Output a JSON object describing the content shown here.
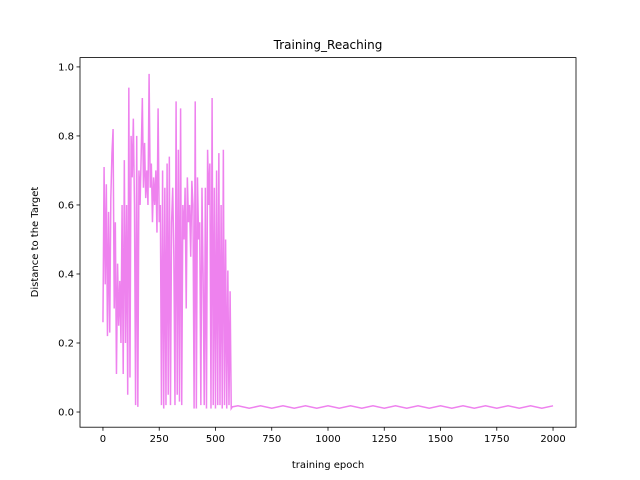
{
  "chart_data": {
    "type": "line",
    "title": "Training_Reaching",
    "xlabel": "training epoch",
    "ylabel": "Distance to the Target",
    "color": "#ee82ee",
    "x": [
      0,
      5,
      10,
      15,
      20,
      25,
      30,
      35,
      40,
      45,
      50,
      55,
      60,
      65,
      70,
      75,
      80,
      85,
      90,
      95,
      100,
      105,
      110,
      115,
      120,
      125,
      130,
      135,
      140,
      145,
      150,
      155,
      160,
      165,
      170,
      175,
      180,
      185,
      190,
      195,
      200,
      205,
      210,
      215,
      220,
      225,
      230,
      235,
      240,
      245,
      250,
      255,
      260,
      265,
      270,
      275,
      280,
      285,
      290,
      295,
      300,
      305,
      310,
      315,
      320,
      325,
      330,
      335,
      340,
      345,
      350,
      355,
      360,
      365,
      370,
      375,
      380,
      385,
      390,
      395,
      400,
      405,
      410,
      415,
      420,
      425,
      430,
      435,
      440,
      445,
      450,
      455,
      460,
      465,
      470,
      475,
      480,
      485,
      490,
      495,
      500,
      505,
      510,
      515,
      520,
      525,
      530,
      535,
      540,
      545,
      550,
      555,
      560,
      565,
      570,
      575,
      600,
      650,
      700,
      750,
      800,
      850,
      900,
      950,
      1000,
      1050,
      1100,
      1150,
      1200,
      1250,
      1300,
      1350,
      1400,
      1450,
      1500,
      1550,
      1600,
      1650,
      1700,
      1750,
      1800,
      1850,
      1900,
      1950,
      2000
    ],
    "values": [
      0.26,
      0.71,
      0.37,
      0.66,
      0.22,
      0.58,
      0.23,
      0.62,
      0.75,
      0.82,
      0.3,
      0.55,
      0.11,
      0.43,
      0.25,
      0.38,
      0.2,
      0.6,
      0.11,
      0.73,
      0.2,
      0.6,
      0.05,
      0.94,
      0.1,
      0.8,
      0.68,
      0.85,
      0.6,
      0.02,
      0.8,
      0.015,
      0.7,
      0.6,
      0.75,
      0.91,
      0.65,
      0.78,
      0.62,
      0.7,
      0.6,
      0.98,
      0.65,
      0.72,
      0.55,
      0.68,
      0.6,
      0.7,
      0.52,
      0.88,
      0.55,
      0.6,
      0.02,
      0.7,
      0.01,
      0.65,
      0.02,
      0.72,
      0.05,
      0.74,
      0.02,
      0.55,
      0.65,
      0.45,
      0.02,
      0.9,
      0.05,
      0.76,
      0.03,
      0.88,
      0.02,
      0.6,
      0.5,
      0.65,
      0.3,
      0.68,
      0.55,
      0.6,
      0.45,
      0.67,
      0.6,
      0.01,
      0.9,
      0.01,
      0.68,
      0.5,
      0.55,
      0.02,
      0.65,
      0.4,
      0.02,
      0.65,
      0.01,
      0.76,
      0.6,
      0.72,
      0.01,
      0.91,
      0.02,
      0.65,
      0.01,
      0.7,
      0.02,
      0.75,
      0.02,
      0.6,
      0.01,
      0.76,
      0.02,
      0.5,
      0.01,
      0.41,
      0.02,
      0.35,
      0.01,
      0.015,
      0.018,
      0.011,
      0.018,
      0.011,
      0.018,
      0.011,
      0.018,
      0.011,
      0.018,
      0.011,
      0.018,
      0.011,
      0.018,
      0.011,
      0.018,
      0.011,
      0.018,
      0.011,
      0.018,
      0.011,
      0.018,
      0.011,
      0.018,
      0.011,
      0.018,
      0.011,
      0.018,
      0.011,
      0.018
    ],
    "xlim": [
      -102,
      2102
    ],
    "ylim": [
      -0.044,
      1.027
    ],
    "xticks": [
      0,
      250,
      500,
      750,
      1000,
      1250,
      1500,
      1750,
      2000
    ],
    "yticks": [
      {
        "value": 0,
        "label": "0.0"
      },
      0.2,
      0.4,
      0.6,
      0.8,
      {
        "value": 1,
        "label": "1.0"
      }
    ]
  }
}
